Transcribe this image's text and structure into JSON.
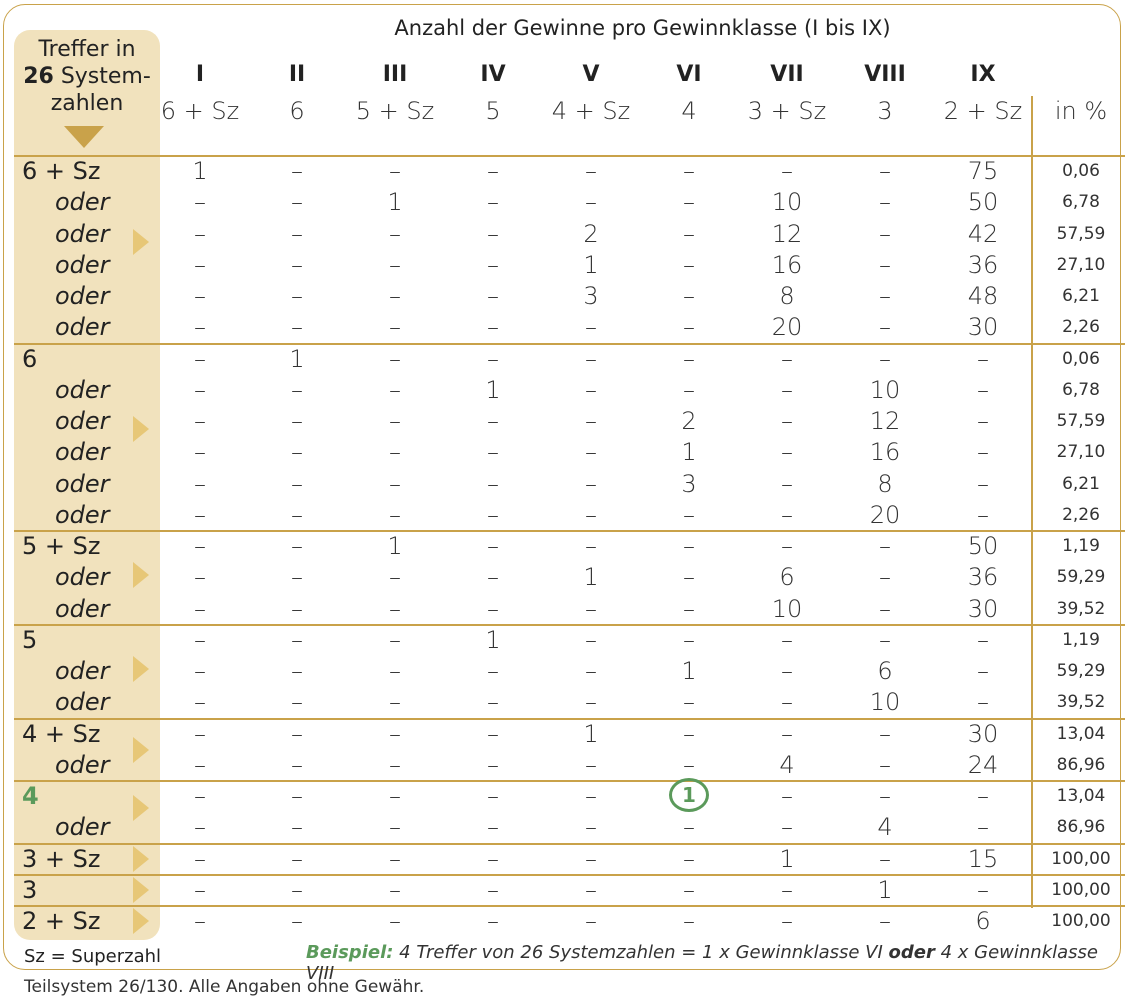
{
  "title": "Anzahl der Gewinne pro Gewinnklasse (I bis IX)",
  "header": {
    "line1": "Treffer in",
    "number": "26",
    "line2": "Systemzahlen"
  },
  "roman": [
    "I",
    "II",
    "III",
    "IV",
    "V",
    "VI",
    "VII",
    "VIII",
    "IX"
  ],
  "classes": [
    "6 + Sz",
    "6",
    "5 + Sz",
    "5",
    "4 + Sz",
    "4",
    "3 + Sz",
    "3",
    "2 + Sz",
    "in %"
  ],
  "rows": [
    {
      "label": "6 + Sz",
      "oder": false,
      "vals": [
        "1",
        "–",
        "–",
        "–",
        "–",
        "–",
        "–",
        "–",
        "75"
      ],
      "pct": "0,06"
    },
    {
      "label": "oder",
      "oder": true,
      "vals": [
        "–",
        "–",
        "1",
        "–",
        "–",
        "–",
        "10",
        "–",
        "50"
      ],
      "pct": "6,78"
    },
    {
      "label": "oder",
      "oder": true,
      "vals": [
        "–",
        "–",
        "–",
        "–",
        "2",
        "–",
        "12",
        "–",
        "42"
      ],
      "pct": "57,59"
    },
    {
      "label": "oder",
      "oder": true,
      "vals": [
        "–",
        "–",
        "–",
        "–",
        "1",
        "–",
        "16",
        "–",
        "36"
      ],
      "pct": "27,10"
    },
    {
      "label": "oder",
      "oder": true,
      "vals": [
        "–",
        "–",
        "–",
        "–",
        "3",
        "–",
        "8",
        "–",
        "48"
      ],
      "pct": "6,21"
    },
    {
      "label": "oder",
      "oder": true,
      "vals": [
        "–",
        "–",
        "–",
        "–",
        "–",
        "–",
        "20",
        "–",
        "30"
      ],
      "pct": "2,26"
    },
    {
      "label": "6",
      "oder": false,
      "vals": [
        "–",
        "1",
        "–",
        "–",
        "–",
        "–",
        "–",
        "–",
        "–"
      ],
      "pct": "0,06"
    },
    {
      "label": "oder",
      "oder": true,
      "vals": [
        "–",
        "–",
        "–",
        "1",
        "–",
        "–",
        "–",
        "10",
        "–"
      ],
      "pct": "6,78"
    },
    {
      "label": "oder",
      "oder": true,
      "vals": [
        "–",
        "–",
        "–",
        "–",
        "–",
        "2",
        "–",
        "12",
        "–"
      ],
      "pct": "57,59"
    },
    {
      "label": "oder",
      "oder": true,
      "vals": [
        "–",
        "–",
        "–",
        "–",
        "–",
        "1",
        "–",
        "16",
        "–"
      ],
      "pct": "27,10"
    },
    {
      "label": "oder",
      "oder": true,
      "vals": [
        "–",
        "–",
        "–",
        "–",
        "–",
        "3",
        "–",
        "8",
        "–"
      ],
      "pct": "6,21"
    },
    {
      "label": "oder",
      "oder": true,
      "vals": [
        "–",
        "–",
        "–",
        "–",
        "–",
        "–",
        "–",
        "20",
        "–"
      ],
      "pct": "2,26"
    },
    {
      "label": "5 + Sz",
      "oder": false,
      "vals": [
        "–",
        "–",
        "1",
        "–",
        "–",
        "–",
        "–",
        "–",
        "50"
      ],
      "pct": "1,19"
    },
    {
      "label": "oder",
      "oder": true,
      "vals": [
        "–",
        "–",
        "–",
        "–",
        "1",
        "–",
        "6",
        "–",
        "36"
      ],
      "pct": "59,29"
    },
    {
      "label": "oder",
      "oder": true,
      "vals": [
        "–",
        "–",
        "–",
        "–",
        "–",
        "–",
        "10",
        "–",
        "30"
      ],
      "pct": "39,52"
    },
    {
      "label": "5",
      "oder": false,
      "vals": [
        "–",
        "–",
        "–",
        "1",
        "–",
        "–",
        "–",
        "–",
        "–"
      ],
      "pct": "1,19"
    },
    {
      "label": "oder",
      "oder": true,
      "vals": [
        "–",
        "–",
        "–",
        "–",
        "–",
        "1",
        "–",
        "6",
        "–"
      ],
      "pct": "59,29"
    },
    {
      "label": "oder",
      "oder": true,
      "vals": [
        "–",
        "–",
        "–",
        "–",
        "–",
        "–",
        "–",
        "10",
        "–"
      ],
      "pct": "39,52"
    },
    {
      "label": "4 + Sz",
      "oder": false,
      "vals": [
        "–",
        "–",
        "–",
        "–",
        "1",
        "–",
        "–",
        "–",
        "30"
      ],
      "pct": "13,04"
    },
    {
      "label": "oder",
      "oder": true,
      "vals": [
        "–",
        "–",
        "–",
        "–",
        "–",
        "–",
        "4",
        "–",
        "24"
      ],
      "pct": "86,96"
    },
    {
      "label": "4",
      "oder": false,
      "highlight": true,
      "vals": [
        "–",
        "–",
        "–",
        "–",
        "–",
        "1",
        "–",
        "–",
        "–"
      ],
      "pct": "13,04"
    },
    {
      "label": "oder",
      "oder": true,
      "vals": [
        "–",
        "–",
        "–",
        "–",
        "–",
        "–",
        "–",
        "4",
        "–"
      ],
      "pct": "86,96"
    },
    {
      "label": "3 + Sz",
      "oder": false,
      "vals": [
        "–",
        "–",
        "–",
        "–",
        "–",
        "–",
        "1",
        "–",
        "15"
      ],
      "pct": "100,00"
    },
    {
      "label": "3",
      "oder": false,
      "vals": [
        "–",
        "–",
        "–",
        "–",
        "–",
        "–",
        "–",
        "1",
        "–"
      ],
      "pct": "100,00"
    },
    {
      "label": "2 + Sz",
      "oder": false,
      "vals": [
        "–",
        "–",
        "–",
        "–",
        "–",
        "–",
        "–",
        "–",
        "6"
      ],
      "pct": "100,00"
    }
  ],
  "legend": "Sz = Superzahl",
  "example": {
    "prefix": "Beispiel:",
    "part1": " 4 Treffer von 26 Systemzahlen = 1 x Gewinnklasse VI ",
    "bold": "oder",
    "part2": " 4 x Gewinnklasse VIII"
  },
  "footnote": "Teilsystem 26/130. Alle Angaben ohne Gewähr.",
  "colors": {
    "gold": "#c9a24a",
    "panel": "#f1e2bd",
    "triangle": "#e7c777",
    "green": "#5b9a5b"
  }
}
